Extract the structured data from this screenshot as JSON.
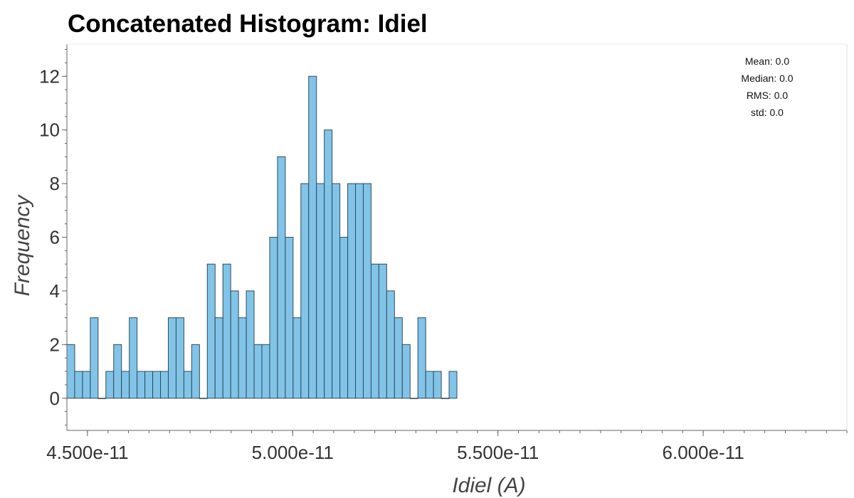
{
  "title": "Concatenated Histogram: Idiel",
  "chart_data": {
    "type": "bar",
    "title": "Concatenated Histogram: Idiel",
    "xlabel": "Idiel (A)",
    "ylabel": "Frequency",
    "bin_start": 4.45e-11,
    "bin_width": 1.9e-13,
    "values": [
      2,
      1,
      1,
      3,
      0,
      1,
      2,
      1,
      3,
      1,
      1,
      1,
      1,
      3,
      3,
      1,
      2,
      0,
      5,
      3,
      5,
      4,
      3,
      4,
      2,
      2,
      6,
      9,
      6,
      3,
      8,
      12,
      8,
      10,
      8,
      6,
      8,
      8,
      8,
      5,
      5,
      4,
      3,
      2,
      0,
      3,
      1,
      1,
      0,
      1
    ],
    "xlim": [
      4.45e-11,
      6.35e-11
    ],
    "ylim": [
      -1.2,
      13.2
    ],
    "x_ticks": [
      4.5e-11,
      5e-11,
      5.5e-11,
      6e-11
    ],
    "x_tick_labels": [
      "4.500e-11",
      "5.000e-11",
      "5.500e-11",
      "6.000e-11"
    ],
    "y_ticks": [
      0,
      2,
      4,
      6,
      8,
      10,
      12
    ],
    "y_tick_labels": [
      "0",
      "2",
      "4",
      "6",
      "8",
      "10",
      "12"
    ],
    "bar_color": "#82c4e8",
    "bar_edge_color": "#2f4a5a",
    "grid": false,
    "stats": [
      "Mean: 0.0",
      "Median: 0.0",
      "RMS: 0.0",
      "std: 0.0"
    ],
    "stats_position": "top-right"
  }
}
